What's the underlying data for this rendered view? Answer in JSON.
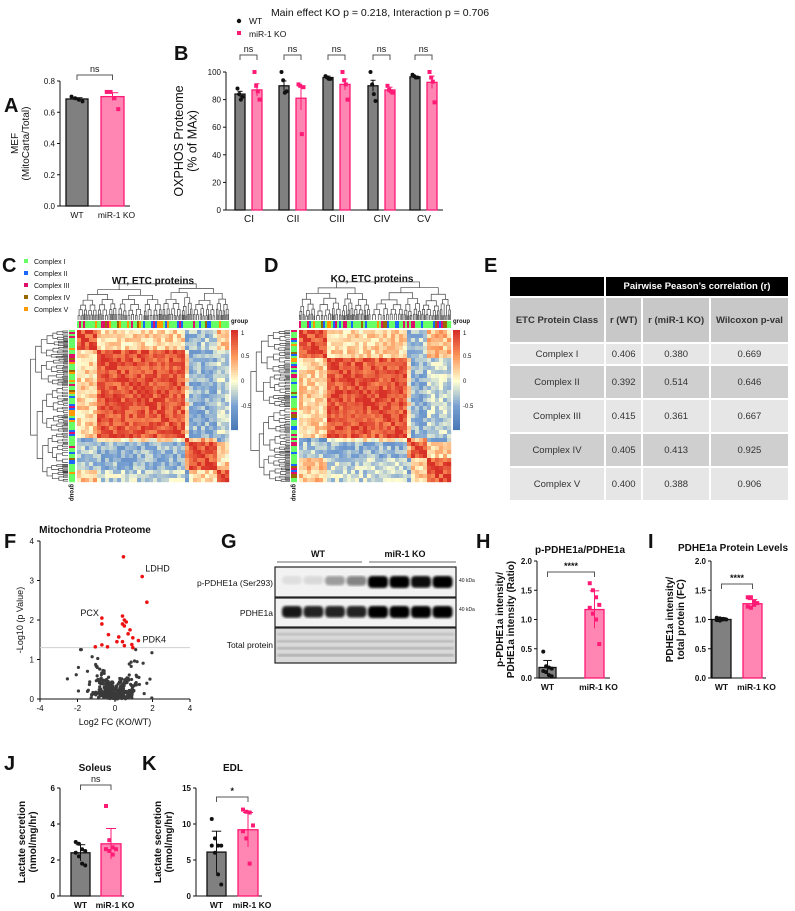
{
  "panel_letters": {
    "A": "A",
    "B": "B",
    "C": "C",
    "D": "D",
    "E": "E",
    "F": "F",
    "G": "G",
    "H": "H",
    "I": "I",
    "J": "J",
    "K": "K"
  },
  "colors": {
    "wt": "#808080",
    "ko_fill": "#ff85b3",
    "ko_edge": "#ff1a75",
    "sig_red": "#ee1111",
    "complex_I": "#66ff66",
    "complex_II": "#1a66ff",
    "complex_III": "#e0106a",
    "complex_IV": "#996600",
    "complex_V": "#ff9900"
  },
  "heatmaps": {
    "legend": [
      "Complex I",
      "Complex II",
      "Complex III",
      "Complex IV",
      "Complex V"
    ],
    "wt_title": "WT, ETC proteins",
    "ko_title": "KO, ETC proteins",
    "group_label": "group",
    "colorbar_ticks": [
      "1",
      "0.5",
      "0",
      "-0.5"
    ]
  },
  "table_e": {
    "header": "Pairwise Peason’s correlation (r)",
    "columns": [
      "ETC Protein Class",
      "r (WT)",
      "r (miR-1 KO)",
      "Wilcoxon p-val"
    ],
    "rows": [
      [
        "Complex I",
        "0.406",
        "0.380",
        "0.669"
      ],
      [
        "Complex II",
        "0.392",
        "0.514",
        "0.646"
      ],
      [
        "Complex III",
        "0.415",
        "0.361",
        "0.667"
      ],
      [
        "Complex IV",
        "0.405",
        "0.413",
        "0.925"
      ],
      [
        "Complex V",
        "0.400",
        "0.388",
        "0.906"
      ]
    ]
  },
  "blot_g": {
    "groups": [
      "WT",
      "miR-1 KO"
    ],
    "rows": [
      "p-PDHE1a (Ser293)",
      "PDHE1a",
      "Total protein"
    ],
    "mw": [
      "40 kDa",
      "40 kDa"
    ],
    "lanes_per_group": 4,
    "p_band_intensity": [
      0.08,
      0.1,
      0.35,
      0.45,
      1,
      1,
      0.95,
      1
    ],
    "total_band_intensity": [
      0.9,
      0.85,
      0.85,
      0.85,
      1,
      1,
      1,
      1
    ]
  },
  "chart_data": [
    {
      "id": "A",
      "type": "bar",
      "title": "",
      "ylabel": [
        "MEF",
        "(MitoCarta/Total)"
      ],
      "ylim": [
        0,
        0.8
      ],
      "yticks": [
        "0.0",
        "0.2",
        "0.4",
        "0.6",
        "0.8"
      ],
      "categories": [
        "WT",
        "miR-1 KO"
      ],
      "means": [
        0.685,
        0.7
      ],
      "errors": [
        0.008,
        0.025
      ],
      "points": [
        [
          0.7,
          0.69,
          0.68,
          0.67
        ],
        [
          0.73,
          0.73,
          0.69,
          0.62
        ]
      ],
      "significance": "ns"
    },
    {
      "id": "B",
      "type": "bar",
      "title": "Main effect KO p = 0.218, Interaction p = 0.706",
      "ylabel": [
        "OXPHOS Proteome",
        "(% of MAx)"
      ],
      "ylim": [
        0,
        100
      ],
      "yticks": [
        "0",
        "20",
        "40",
        "60",
        "80",
        "100"
      ],
      "categories": [
        "CI",
        "CII",
        "CIII",
        "CIV",
        "CV"
      ],
      "legend": [
        "WT",
        "miR-1 KO"
      ],
      "series": [
        {
          "name": "WT",
          "means": [
            84,
            90,
            96,
            90,
            96.5
          ],
          "errors": [
            2,
            3.5,
            1,
            4,
            0.6
          ],
          "points": [
            [
              88,
              84,
              80,
              82
            ],
            [
              100,
              94,
              85,
              86
            ],
            [
              97,
              96,
              95,
              95
            ],
            [
              100,
              91,
              84,
              79
            ],
            [
              98,
              97,
              96,
              96
            ]
          ]
        },
        {
          "name": "miR-1 KO",
          "means": [
            87,
            81,
            91,
            87,
            92.5
          ],
          "errors": [
            4.5,
            8.5,
            4,
            2,
            4.5
          ],
          "points": [
            [
              100,
              90,
              86,
              80
            ],
            [
              91,
              90,
              55,
              89
            ],
            [
              100,
              94,
              91,
              80
            ],
            [
              90,
              87,
              86,
              85
            ],
            [
              100,
              96,
              93,
              78
            ]
          ]
        }
      ],
      "significance": [
        "ns",
        "ns",
        "ns",
        "ns",
        "ns"
      ]
    },
    {
      "id": "F",
      "type": "scatter",
      "title": "Mitochondria Proteome",
      "xlabel": "Log2 FC (KO/WT)",
      "ylabel": "-Log10 (p Value)",
      "xlim": [
        -4,
        4
      ],
      "ylim": [
        0,
        4
      ],
      "xticks": [
        "-4",
        "-2",
        "0",
        "2",
        "4"
      ],
      "yticks": [
        "0",
        "1",
        "2",
        "3",
        "4"
      ],
      "threshold": 1.3,
      "significant_points": [
        [
          0.45,
          3.6
        ],
        [
          1.45,
          3.1
        ],
        [
          1.7,
          2.45
        ],
        [
          -0.7,
          2.05
        ],
        [
          -0.7,
          1.9
        ],
        [
          0.4,
          2.1
        ],
        [
          0.5,
          2.0
        ],
        [
          0.6,
          1.95
        ],
        [
          0.4,
          1.9
        ],
        [
          0.5,
          1.85
        ],
        [
          0.8,
          1.75
        ],
        [
          0.7,
          1.65
        ],
        [
          0.95,
          1.55
        ],
        [
          -0.35,
          1.63
        ],
        [
          0.2,
          1.57
        ],
        [
          1.25,
          1.48
        ],
        [
          0.1,
          1.45
        ],
        [
          0.4,
          1.45
        ],
        [
          0.5,
          1.35
        ],
        [
          0.9,
          1.38
        ],
        [
          0.95,
          1.3
        ],
        [
          -0.7,
          1.37
        ],
        [
          -0.4,
          1.32
        ],
        [
          -1.05,
          1.32
        ]
      ],
      "labels": [
        {
          "text": "LDHD",
          "x": 1.45,
          "y": 3.1
        },
        {
          "text": "PCX",
          "x": -0.7,
          "y": 2.05
        },
        {
          "text": "PDK4",
          "x": 1.25,
          "y": 1.48
        }
      ],
      "nonsignificant_count": 380
    },
    {
      "id": "H",
      "type": "bar",
      "title": "p-PDHE1a/PDHE1a",
      "ylabel": [
        "p-PDHE1a intensity/",
        "PDHE1a intensity (Ratio)"
      ],
      "ylim": [
        0,
        2
      ],
      "yticks": [
        "0.0",
        "0.5",
        "1.0",
        "1.5",
        "2.0"
      ],
      "categories": [
        "WT",
        "miR-1 KO"
      ],
      "means": [
        0.18,
        1.17
      ],
      "errors": [
        0.12,
        0.32
      ],
      "points": [
        [
          0.45,
          0.2,
          0.18,
          0.16,
          0.12,
          0.1,
          0.05,
          0.03
        ],
        [
          1.62,
          1.5,
          1.38,
          1.25,
          1.2,
          1.1,
          1.0,
          0.58
        ]
      ],
      "significance": "****"
    },
    {
      "id": "I",
      "type": "bar",
      "title": "PDHE1a Protein Levels",
      "ylabel": [
        "PDHE1a intensity/",
        "total protein (FC)"
      ],
      "ylim": [
        0,
        2
      ],
      "yticks": [
        "0.0",
        "0.5",
        "1.0",
        "1.5",
        "2.0"
      ],
      "categories": [
        "WT",
        "miR-1 KO"
      ],
      "means": [
        1.0,
        1.27
      ],
      "errors": [
        0.03,
        0.07
      ],
      "points": [
        [
          1.03,
          1.02,
          1.01,
          1.0,
          0.99,
          0.98,
          1.0
        ],
        [
          1.38,
          1.38,
          1.3,
          1.28,
          1.22,
          1.2,
          1.25
        ]
      ],
      "significance": "****"
    },
    {
      "id": "J",
      "type": "bar",
      "title": "Soleus",
      "ylabel": [
        "Lactate secretion",
        "(nmol/mg/hr)"
      ],
      "ylim": [
        0,
        6
      ],
      "yticks": [
        "0",
        "2",
        "4",
        "6"
      ],
      "categories": [
        "WT",
        "miR-1 KO"
      ],
      "means": [
        2.4,
        2.9
      ],
      "errors": [
        0.45,
        0.85
      ],
      "points": [
        [
          3.0,
          2.9,
          2.6,
          2.5,
          2.4,
          2.2,
          1.8,
          1.7
        ],
        [
          5.0,
          3.1,
          2.7,
          2.6,
          2.6,
          2.5,
          2.3
        ]
      ],
      "significance": "ns"
    },
    {
      "id": "K",
      "type": "bar",
      "title": "EDL",
      "ylabel": [
        "Lactate secretion",
        "(nmol/mg/hr)"
      ],
      "ylim": [
        0,
        15
      ],
      "yticks": [
        "0",
        "5",
        "10",
        "15"
      ],
      "categories": [
        "WT",
        "miR-1 KO"
      ],
      "means": [
        6.1,
        9.2
      ],
      "errors": [
        2.9,
        2.4
      ],
      "points": [
        [
          10.7,
          8.0,
          7.0,
          7.0,
          7.0,
          6.0,
          3.0,
          1.6
        ],
        [
          12.0,
          11.7,
          11.6,
          9.8,
          9.0,
          8.0,
          4.5
        ]
      ],
      "significance": "*"
    }
  ]
}
